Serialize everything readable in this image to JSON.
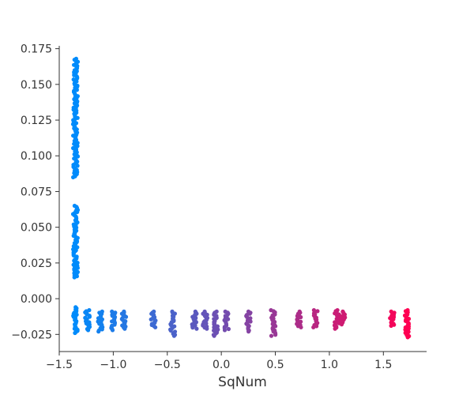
{
  "chart_data": {
    "type": "scatter",
    "title": "",
    "xlabel": "SqNum",
    "ylabel": "",
    "xlim": [
      -1.5,
      1.9
    ],
    "ylim": [
      -0.037,
      0.177
    ],
    "xticks": [
      -1.5,
      -1.0,
      -0.5,
      0.0,
      0.5,
      1.0,
      1.5
    ],
    "xtick_labels": [
      "−1.5",
      "−1.0",
      "−0.5",
      "0.0",
      "0.5",
      "1.0",
      "1.5"
    ],
    "yticks": [
      -0.025,
      0.0,
      0.025,
      0.05,
      0.075,
      0.1,
      0.125,
      0.15,
      0.175
    ],
    "ytick_labels": [
      "−0.025",
      "0.000",
      "0.025",
      "0.050",
      "0.075",
      "0.100",
      "0.125",
      "0.150",
      "0.175"
    ],
    "grid": false,
    "legend": "none",
    "colors": {
      "low": "#008bfb",
      "high": "#ff0052"
    },
    "clusters": [
      {
        "x": -1.35,
        "ymin": 0.085,
        "ymax": 0.168
      },
      {
        "x": -1.35,
        "ymin": 0.015,
        "ymax": 0.065
      },
      {
        "x": -1.35,
        "ymin": -0.024,
        "ymax": -0.006
      },
      {
        "x": -1.24,
        "ymin": -0.022,
        "ymax": -0.008
      },
      {
        "x": -1.12,
        "ymin": -0.023,
        "ymax": -0.009
      },
      {
        "x": -1.0,
        "ymin": -0.022,
        "ymax": -0.009
      },
      {
        "x": -0.9,
        "ymin": -0.021,
        "ymax": -0.009
      },
      {
        "x": -0.63,
        "ymin": -0.02,
        "ymax": -0.009
      },
      {
        "x": -0.45,
        "ymin": -0.026,
        "ymax": -0.009
      },
      {
        "x": -0.25,
        "ymin": -0.021,
        "ymax": -0.009
      },
      {
        "x": -0.15,
        "ymin": -0.021,
        "ymax": -0.009
      },
      {
        "x": -0.05,
        "ymin": -0.026,
        "ymax": -0.009
      },
      {
        "x": 0.05,
        "ymin": -0.022,
        "ymax": -0.009
      },
      {
        "x": 0.25,
        "ymin": -0.023,
        "ymax": -0.009
      },
      {
        "x": 0.48,
        "ymin": -0.026,
        "ymax": -0.008
      },
      {
        "x": 0.72,
        "ymin": -0.02,
        "ymax": -0.009
      },
      {
        "x": 0.87,
        "ymin": -0.02,
        "ymax": -0.008
      },
      {
        "x": 1.07,
        "ymin": -0.021,
        "ymax": -0.008
      },
      {
        "x": 1.13,
        "ymin": -0.018,
        "ymax": -0.009
      },
      {
        "x": 1.58,
        "ymin": -0.019,
        "ymax": -0.009
      },
      {
        "x": 1.72,
        "ymin": -0.027,
        "ymax": -0.008
      }
    ]
  }
}
